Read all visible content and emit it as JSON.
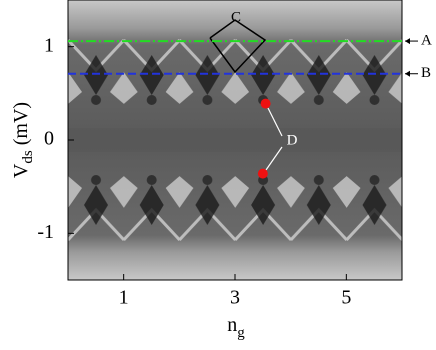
{
  "chart_data": {
    "type": "heatmap",
    "xlabel_main": "n",
    "xlabel_sub": "g",
    "ylabel_main": "V",
    "ylabel_sub": "ds",
    "ylabel_unit": "(mV)",
    "xlim": [
      0,
      6
    ],
    "xticks": [
      1,
      3,
      5
    ],
    "ylim": [
      -1.5,
      1.5
    ],
    "yticks": [
      -1,
      0,
      1
    ],
    "lines": [
      {
        "name": "A",
        "value": 1.06,
        "color": "#22dd22",
        "style": "dash-dot"
      },
      {
        "name": "B",
        "value": 0.71,
        "color": "#2233dd",
        "style": "dashed"
      }
    ],
    "points": {
      "color": "#ee1111",
      "x": [
        3.55,
        3.5
      ],
      "y": [
        0.39,
        -0.36
      ]
    },
    "annotations": [
      "C",
      "D"
    ]
  }
}
